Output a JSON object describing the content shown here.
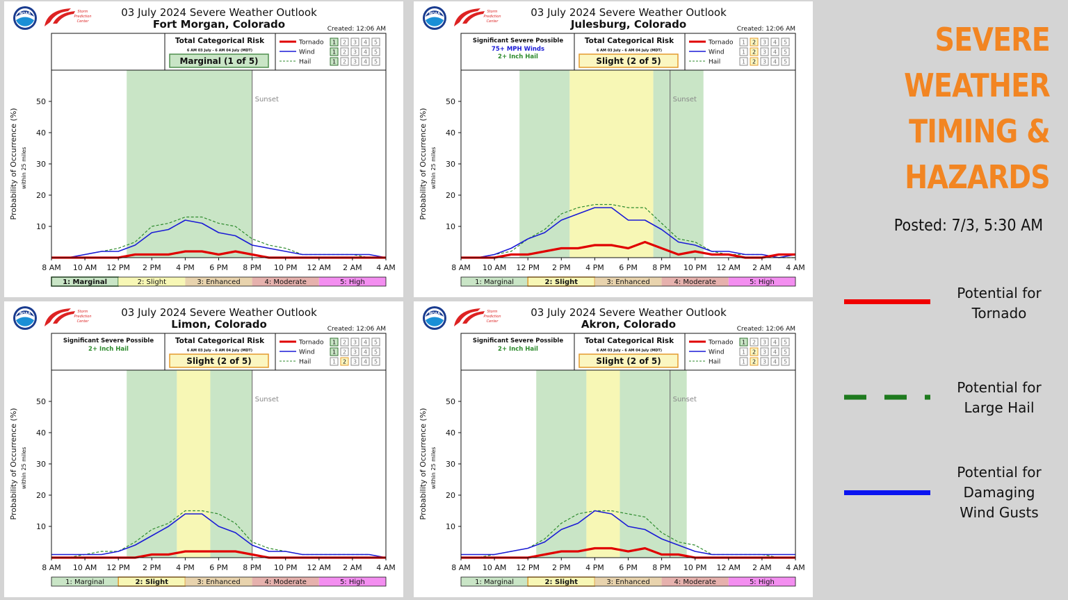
{
  "title_lines": [
    "SEVERE",
    "WEATHER",
    "TIMING &",
    "HAZARDS"
  ],
  "posted": "Posted: 7/3, 5:30 AM",
  "legend": [
    {
      "label": "Potential for Tornado",
      "line1": "Potential for",
      "line2": "Tornado",
      "color": "#f00000",
      "style": "solid",
      "icon": "tornado-line-icon"
    },
    {
      "label": "Potential for Large Hail",
      "line1": "Potential for",
      "line2": "Large Hail",
      "color": "#1e7a1e",
      "style": "dashed",
      "icon": "hail-line-icon"
    },
    {
      "label": "Potential for Damaging Wind Gusts",
      "line1": "Potential for",
      "line2": "Damaging",
      "line3": "Wind Gusts",
      "color": "#0a14f0",
      "style": "solid",
      "icon": "wind-line-icon"
    }
  ],
  "common": {
    "spc_line1": "Storm",
    "spc_line2": "Prediction",
    "spc_line3": "Center",
    "noaa": "NOAA",
    "ylabel": "Probability of Occurrence (%)",
    "ylabel_sub": "within 25 miles",
    "risk_header": "Total Categorical Risk",
    "risk_sub": "6 AM 03 July - 6 AM 04 July (MDT)",
    "sunset_label": "Sunset",
    "hazards": [
      "Tornado",
      "Wind",
      "Hail"
    ],
    "levels": [
      "1",
      "2",
      "3",
      "4",
      "5"
    ],
    "risk_categories": [
      "1: Marginal",
      "2: Slight",
      "3: Enhanced",
      "4: Moderate",
      "5: High"
    ],
    "risk_colors": [
      "#c9e5c6",
      "#f7f7b5",
      "#e8d3ad",
      "#e6b1ad",
      "#f38ef0"
    ],
    "x_ticks": [
      "8 AM",
      "10 AM",
      "12 PM",
      "2 PM",
      "4 PM",
      "6 PM",
      "8 PM",
      "10 PM",
      "12 AM",
      "2 AM",
      "4 AM"
    ],
    "y_ticks": [
      10,
      20,
      30,
      40,
      50
    ]
  },
  "chart_data": [
    {
      "type": "line",
      "title": "03 July 2024 Severe Weather Outlook",
      "location": "Fort Morgan, Colorado",
      "created": "Created: 12:06 AM",
      "risk": "Marginal (1 of 5)",
      "risk_level": 1,
      "hazard_levels": {
        "Tornado": 1,
        "Wind": 1,
        "Hail": 1
      },
      "sig_severe": null,
      "ylim": [
        0,
        60
      ],
      "xlim_hours": [
        8,
        28
      ],
      "sunset_hour": 20.0,
      "shading": [
        {
          "from": 12.5,
          "to": 20.0,
          "level": 1
        }
      ],
      "x_hours": [
        8,
        9,
        10,
        11,
        12,
        13,
        14,
        15,
        16,
        17,
        18,
        19,
        20,
        21,
        22,
        23,
        24,
        25,
        26,
        27,
        28
      ],
      "series": [
        {
          "name": "Tornado",
          "color": "#e00000",
          "values": [
            0,
            0,
            0,
            0,
            0,
            1,
            1,
            1,
            2,
            2,
            1,
            2,
            1,
            0,
            0,
            0,
            0,
            0,
            0,
            0,
            0
          ]
        },
        {
          "name": "Wind",
          "color": "#1a1ad6",
          "values": [
            0,
            0,
            1,
            2,
            2,
            4,
            8,
            9,
            12,
            11,
            8,
            7,
            4,
            3,
            2,
            1,
            1,
            1,
            1,
            1,
            0
          ]
        },
        {
          "name": "Hail",
          "color": "#2e8b2e",
          "values": [
            0,
            0,
            1,
            2,
            3,
            5,
            10,
            11,
            13,
            13,
            11,
            10,
            6,
            4,
            3,
            1,
            1,
            1,
            1,
            0,
            0
          ]
        }
      ]
    },
    {
      "type": "line",
      "title": "03 July 2024 Severe Weather Outlook",
      "location": "Julesburg, Colorado",
      "created": "Created: 12:06 AM",
      "risk": "Slight (2 of 5)",
      "risk_level": 2,
      "hazard_levels": {
        "Tornado": 2,
        "Wind": 2,
        "Hail": 2
      },
      "sig_severe": {
        "header": "Significant Severe Possible",
        "lines": [
          {
            "text": "75+ MPH Winds",
            "color": "#1a1ad6"
          },
          {
            "text": "2+ Inch Hail",
            "color": "#2e8b2e"
          }
        ]
      },
      "ylim": [
        0,
        60
      ],
      "xlim_hours": [
        8,
        28
      ],
      "sunset_hour": 20.5,
      "shading": [
        {
          "from": 11.5,
          "to": 14.5,
          "level": 1
        },
        {
          "from": 14.5,
          "to": 19.5,
          "level": 2
        },
        {
          "from": 19.5,
          "to": 22.5,
          "level": 1
        }
      ],
      "x_hours": [
        8,
        9,
        10,
        11,
        12,
        13,
        14,
        15,
        16,
        17,
        18,
        19,
        20,
        21,
        22,
        23,
        24,
        25,
        26,
        27,
        28
      ],
      "series": [
        {
          "name": "Tornado",
          "color": "#e00000",
          "values": [
            0,
            0,
            0,
            1,
            1,
            2,
            3,
            3,
            4,
            4,
            3,
            5,
            3,
            1,
            2,
            1,
            1,
            0,
            0,
            1,
            1
          ]
        },
        {
          "name": "Wind",
          "color": "#1a1ad6",
          "values": [
            0,
            0,
            1,
            3,
            6,
            8,
            12,
            14,
            16,
            16,
            12,
            12,
            9,
            5,
            4,
            2,
            2,
            1,
            1,
            0,
            1
          ]
        },
        {
          "name": "Hail",
          "color": "#2e8b2e",
          "values": [
            0,
            0,
            1,
            2,
            6,
            9,
            14,
            16,
            17,
            17,
            16,
            16,
            11,
            6,
            5,
            2,
            1,
            1,
            1,
            0,
            0
          ]
        }
      ]
    },
    {
      "type": "line",
      "title": "03 July 2024 Severe Weather Outlook",
      "location": "Limon, Colorado",
      "created": "Created: 12:06 AM",
      "risk": "Slight (2 of 5)",
      "risk_level": 2,
      "hazard_levels": {
        "Tornado": 1,
        "Wind": 1,
        "Hail": 2
      },
      "sig_severe": {
        "header": "Significant Severe Possible",
        "lines": [
          {
            "text": "2+ Inch Hail",
            "color": "#2e8b2e"
          }
        ]
      },
      "ylim": [
        0,
        60
      ],
      "xlim_hours": [
        8,
        28
      ],
      "sunset_hour": 20.0,
      "shading": [
        {
          "from": 12.5,
          "to": 15.5,
          "level": 1
        },
        {
          "from": 15.5,
          "to": 17.5,
          "level": 2
        },
        {
          "from": 17.5,
          "to": 20.0,
          "level": 1
        }
      ],
      "x_hours": [
        8,
        9,
        10,
        11,
        12,
        13,
        14,
        15,
        16,
        17,
        18,
        19,
        20,
        21,
        22,
        23,
        24,
        25,
        26,
        27,
        28
      ],
      "series": [
        {
          "name": "Tornado",
          "color": "#e00000",
          "values": [
            0,
            0,
            0,
            0,
            0,
            0,
            1,
            1,
            2,
            2,
            2,
            2,
            1,
            0,
            0,
            0,
            0,
            0,
            0,
            0,
            0
          ]
        },
        {
          "name": "Wind",
          "color": "#1a1ad6",
          "values": [
            1,
            1,
            1,
            1,
            2,
            4,
            7,
            10,
            14,
            14,
            10,
            8,
            4,
            2,
            2,
            1,
            1,
            1,
            1,
            1,
            0
          ]
        },
        {
          "name": "Hail",
          "color": "#2e8b2e",
          "values": [
            0,
            0,
            1,
            2,
            2,
            5,
            9,
            11,
            15,
            15,
            14,
            11,
            5,
            3,
            2,
            1,
            1,
            1,
            1,
            1,
            0
          ]
        }
      ]
    },
    {
      "type": "line",
      "title": "03 July 2024 Severe Weather Outlook",
      "location": "Akron, Colorado",
      "created": "Created: 12:06 AM",
      "risk": "Slight (2 of 5)",
      "risk_level": 2,
      "hazard_levels": {
        "Tornado": 1,
        "Wind": 2,
        "Hail": 2
      },
      "sig_severe": {
        "header": "Significant Severe Possible",
        "lines": [
          {
            "text": "2+ Inch Hail",
            "color": "#2e8b2e"
          }
        ]
      },
      "ylim": [
        0,
        60
      ],
      "xlim_hours": [
        8,
        28
      ],
      "sunset_hour": 20.5,
      "shading": [
        {
          "from": 12.5,
          "to": 15.5,
          "level": 1
        },
        {
          "from": 15.5,
          "to": 17.5,
          "level": 2
        },
        {
          "from": 17.5,
          "to": 21.5,
          "level": 1
        }
      ],
      "x_hours": [
        8,
        9,
        10,
        11,
        12,
        13,
        14,
        15,
        16,
        17,
        18,
        19,
        20,
        21,
        22,
        23,
        24,
        25,
        26,
        27,
        28
      ],
      "series": [
        {
          "name": "Tornado",
          "color": "#e00000",
          "values": [
            0,
            0,
            0,
            0,
            0,
            1,
            2,
            2,
            3,
            3,
            2,
            3,
            1,
            1,
            0,
            0,
            0,
            0,
            0,
            0,
            0
          ]
        },
        {
          "name": "Wind",
          "color": "#1a1ad6",
          "values": [
            1,
            1,
            1,
            2,
            3,
            5,
            9,
            11,
            15,
            14,
            10,
            9,
            6,
            4,
            2,
            1,
            1,
            1,
            1,
            1,
            1
          ]
        },
        {
          "name": "Hail",
          "color": "#2e8b2e",
          "values": [
            0,
            0,
            1,
            2,
            3,
            6,
            11,
            14,
            15,
            15,
            14,
            13,
            8,
            5,
            4,
            1,
            1,
            1,
            1,
            0,
            0
          ]
        }
      ]
    }
  ]
}
